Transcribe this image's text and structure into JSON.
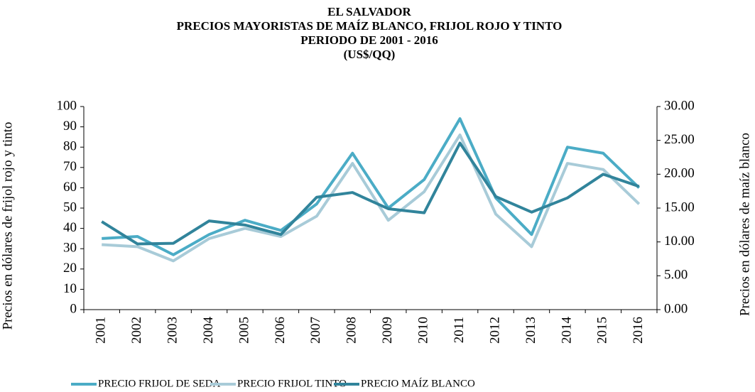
{
  "chart_data": {
    "type": "line",
    "title": [
      "EL SALVADOR",
      "PRECIOS MAYORISTAS DE MAÍZ BLANCO, FRIJOL ROJO Y TINTO",
      "PERIODO DE 2001 - 2016",
      "(US$/QQ)"
    ],
    "y_label": "Precios  en dólares de frijol rojo y tinto",
    "y2_label": "Precios en dólares de maíz blanco",
    "categories": [
      "2001",
      "2002",
      "2003",
      "2004",
      "2005",
      "2006",
      "2007",
      "2008",
      "2009",
      "2010",
      "2011",
      "2012",
      "2013",
      "2014",
      "2015",
      "2016"
    ],
    "series": [
      {
        "name": "PRECIO FRIJOL DE SEDA",
        "color": "#4bacc6",
        "values": [
          35,
          36,
          27,
          37,
          44,
          39,
          52,
          77,
          50,
          64,
          94,
          55,
          37,
          80,
          77,
          60
        ]
      },
      {
        "name": "PRECIO FRIJOL TINTO",
        "color": "#a8cbd8",
        "values": [
          32,
          31,
          24,
          35,
          40,
          36,
          46,
          72,
          44,
          58,
          86,
          47,
          31,
          72,
          69,
          52
        ]
      },
      {
        "name": "PRECIO MAÍZ BLANCO",
        "color": "#31849b",
        "axis": "y2",
        "values": [
          13.0,
          9.7,
          9.8,
          13.1,
          12.5,
          11.1,
          16.6,
          17.3,
          14.9,
          14.3,
          24.6,
          16.7,
          14.4,
          16.5,
          20.0,
          18.2
        ]
      }
    ],
    "ylim": [
      0,
      100
    ],
    "yticks": [
      0,
      10,
      20,
      30,
      40,
      50,
      60,
      70,
      80,
      90,
      100
    ],
    "y2lim": [
      0,
      30
    ],
    "y2ticks": [
      {
        "value": 0,
        "label": "0.00"
      },
      {
        "value": 5,
        "label": "5.00"
      },
      {
        "value": 10,
        "label": "10.00"
      },
      {
        "value": 15,
        "label": "15.00"
      },
      {
        "value": 20,
        "label": "20.00"
      },
      {
        "value": 25,
        "label": "25.00"
      },
      {
        "value": 30,
        "label": "30.00"
      }
    ],
    "legend": "bottom"
  }
}
